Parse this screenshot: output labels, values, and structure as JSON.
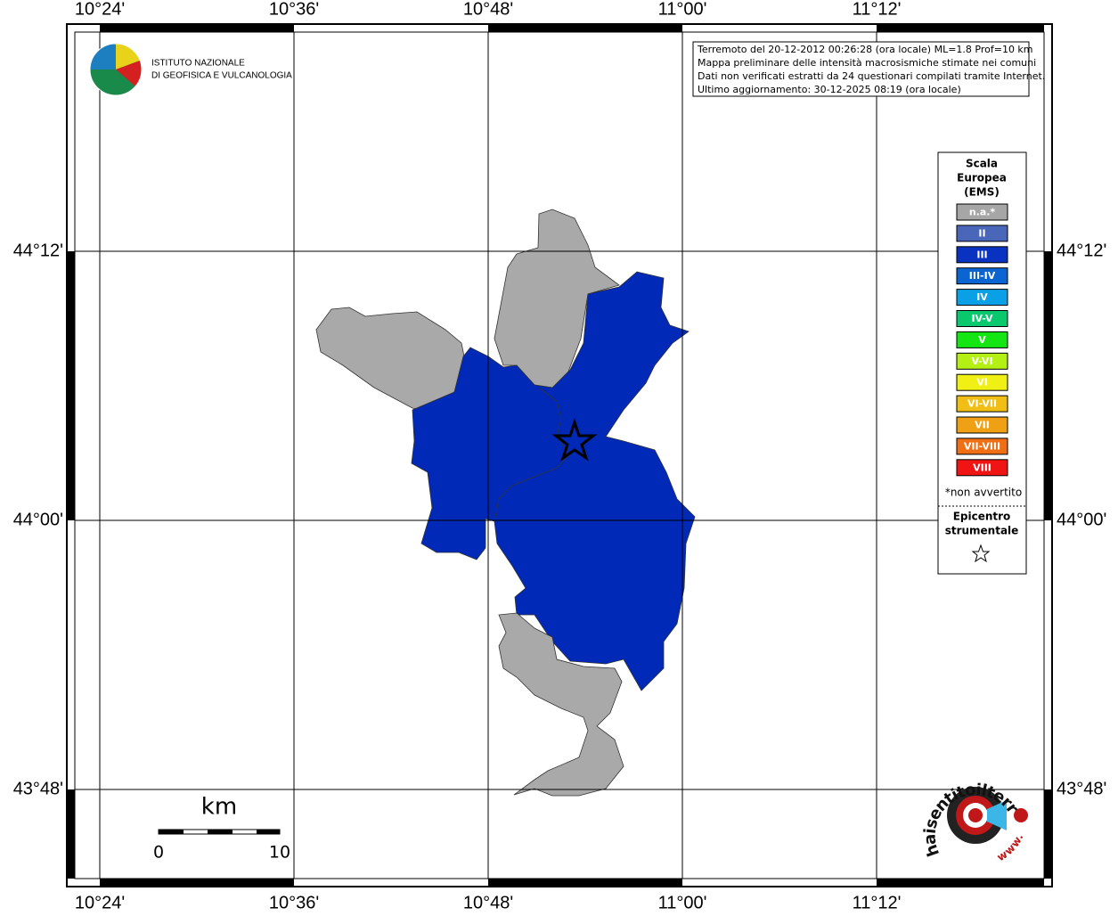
{
  "map": {
    "lon_labels": [
      "10°24'",
      "10°36'",
      "10°48'",
      "11°00'",
      "11°12'"
    ],
    "lat_labels": [
      "44°12'",
      "44°00'",
      "43°48'"
    ],
    "institute": [
      "ISTITUTO NAZIONALE",
      "DI GEOFISICA E VULCANOLOGIA"
    ],
    "info": [
      "Terremoto del 20-12-2012 00:26:28 (ora locale) ML=1.8 Prof=10 km",
      "Mappa preliminare delle intensità macrosismiche stimate nei comuni",
      "Dati non verificati estratti da 24 questionari compilati tramite Internet.",
      "Ultimo aggiornamento: 30-12-2025 08:19 (ora locale)"
    ],
    "legend": {
      "title": [
        "Scala",
        "Europea",
        "(EMS)"
      ],
      "items": [
        {
          "label": "n.a.*",
          "color": "#a6a6a6"
        },
        {
          "label": "II",
          "color": "#4a66b8"
        },
        {
          "label": "III",
          "color": "#0a32c0"
        },
        {
          "label": "III-IV",
          "color": "#0a64d2"
        },
        {
          "label": "IV",
          "color": "#0aa0e6"
        },
        {
          "label": "IV-V",
          "color": "#0ac86e"
        },
        {
          "label": "V",
          "color": "#14e614"
        },
        {
          "label": "V-VI",
          "color": "#b4f014"
        },
        {
          "label": "VI",
          "color": "#f0f014"
        },
        {
          "label": "VI-VII",
          "color": "#f0be14"
        },
        {
          "label": "VII",
          "color": "#f0a014"
        },
        {
          "label": "VII-VIII",
          "color": "#f06e14"
        },
        {
          "label": "VIII",
          "color": "#f01414"
        }
      ],
      "note": "*non avvertito",
      "epicenter": [
        "Epicentro",
        "strumentale"
      ]
    },
    "scale": {
      "unit": "km",
      "start": "0",
      "end": "10"
    },
    "logo": {
      "main": "haisentitoilterremoto.it",
      "www": "www."
    }
  }
}
